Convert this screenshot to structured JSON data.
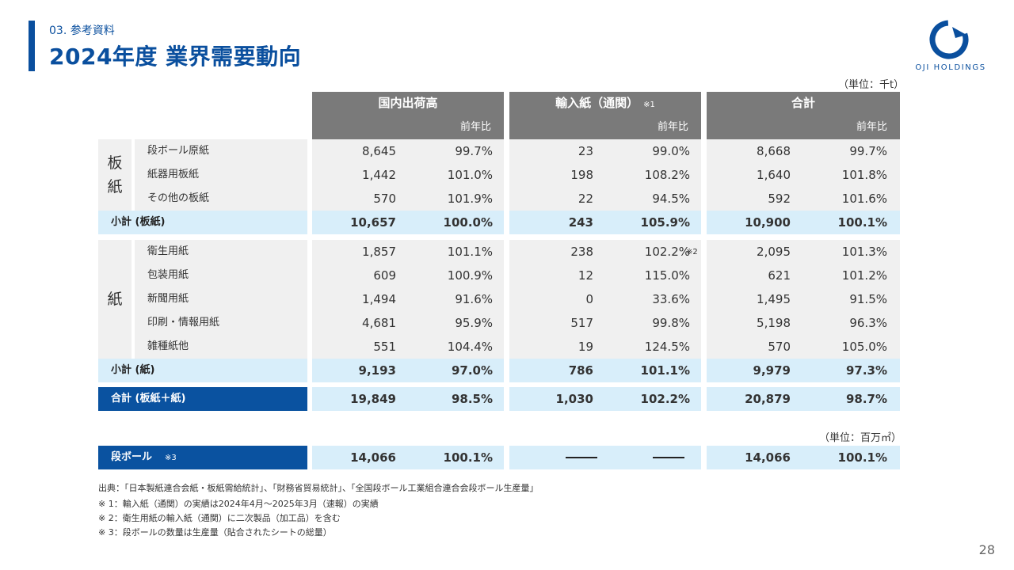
{
  "header": {
    "section": "03. 参考資料",
    "title": "2024年度 業界需要動向",
    "logo_text": "OJI HOLDINGS"
  },
  "units": {
    "main": "（単位：千t）",
    "cardboard": "（単位：百万㎡）"
  },
  "table": {
    "columns": [
      {
        "title": "国内出荷高",
        "note": "",
        "sub": "前年比"
      },
      {
        "title": "輸入紙（通関）",
        "note": "※1",
        "sub": "前年比"
      },
      {
        "title": "合計",
        "note": "",
        "sub": "前年比"
      }
    ],
    "board": {
      "group_chars": [
        "板",
        "紙"
      ],
      "rows": [
        {
          "label": "段ボール原紙",
          "d": "8,645",
          "dp": "99.7%",
          "i": "23",
          "ip": "99.0%",
          "t": "8,668",
          "tp": "99.7%"
        },
        {
          "label": "紙器用板紙",
          "d": "1,442",
          "dp": "101.0%",
          "i": "198",
          "ip": "108.2%",
          "t": "1,640",
          "tp": "101.8%"
        },
        {
          "label": "その他の板紙",
          "d": "570",
          "dp": "101.9%",
          "i": "22",
          "ip": "94.5%",
          "t": "592",
          "tp": "101.6%"
        }
      ],
      "subtotal": {
        "label": "小計 (板紙)",
        "d": "10,657",
        "dp": "100.0%",
        "i": "243",
        "ip": "105.9%",
        "t": "10,900",
        "tp": "100.1%"
      }
    },
    "paper": {
      "group_chars": [
        "紙"
      ],
      "rows": [
        {
          "label": "衛生用紙",
          "d": "1,857",
          "dp": "101.1%",
          "i": "238",
          "ip": "102.2%",
          "t": "2,095",
          "tp": "101.3%"
        },
        {
          "label": "包装用紙",
          "d": "609",
          "dp": "100.9%",
          "i": "12",
          "ip": "115.0%",
          "t": "621",
          "tp": "101.2%"
        },
        {
          "label": "新聞用紙",
          "d": "1,494",
          "dp": "91.6%",
          "i": "0",
          "ip": "33.6%",
          "t": "1,495",
          "tp": "91.5%"
        },
        {
          "label": "印刷・情報用紙",
          "d": "4,681",
          "dp": "95.9%",
          "i": "517",
          "ip": "99.8%",
          "t": "5,198",
          "tp": "96.3%"
        },
        {
          "label": "雑種紙他",
          "d": "551",
          "dp": "104.4%",
          "i": "19",
          "ip": "124.5%",
          "t": "570",
          "tp": "105.0%"
        }
      ],
      "sanitary_note": "※2",
      "subtotal": {
        "label": "小計 (紙)",
        "d": "9,193",
        "dp": "97.0%",
        "i": "786",
        "ip": "101.1%",
        "t": "9,979",
        "tp": "97.3%"
      }
    },
    "total": {
      "label": "合計 (板紙＋紙)",
      "d": "19,849",
      "dp": "98.5%",
      "i": "1,030",
      "ip": "102.2%",
      "t": "20,879",
      "tp": "98.7%"
    },
    "cardboard": {
      "label": "段ボール",
      "note": "※3",
      "d": "14,066",
      "dp": "100.1%",
      "t": "14,066",
      "tp": "100.1%"
    }
  },
  "footnotes": [
    "出典：「日本製紙連合会紙・板紙需給統計」、「財務省貿易統計」、「全国段ボール工業組合連合会段ボール生産量」",
    "※ 1：輸入紙（通関）の実績は2024年4月～2025年3月（速報）の実績",
    "※ 2：衛生用紙の輸入紙（通関）に二次製品（加工品）を含む",
    "※ 3：段ボールの数量は生産量（貼合されたシートの総量）"
  ],
  "page_number": "28",
  "colors": {
    "brand_blue": "#0a52a0",
    "header_gray": "#7a7a7a",
    "subtotal_bg": "#d8eefa",
    "row_bg": "#f0f0f0"
  }
}
